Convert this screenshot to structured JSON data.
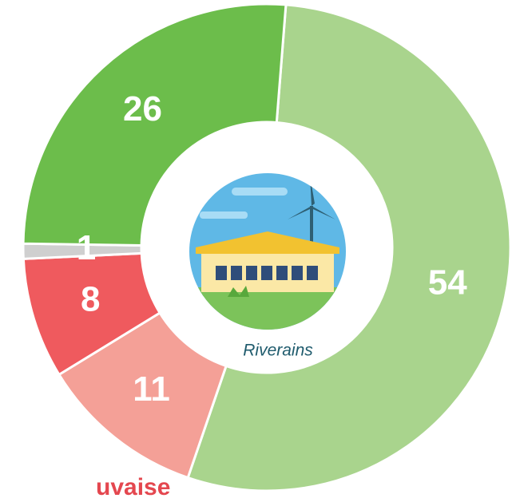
{
  "chart_data": {
    "type": "donut",
    "center_label": "Riverains",
    "categories": [
      null,
      null,
      null,
      null,
      null
    ],
    "values": [
      54,
      11,
      8,
      1,
      26
    ],
    "colors": [
      "#a9d48d",
      "#f4a097",
      "#ef5a5e",
      "#cfcfcf",
      "#6cbd4b"
    ],
    "note": "uvaise"
  }
}
